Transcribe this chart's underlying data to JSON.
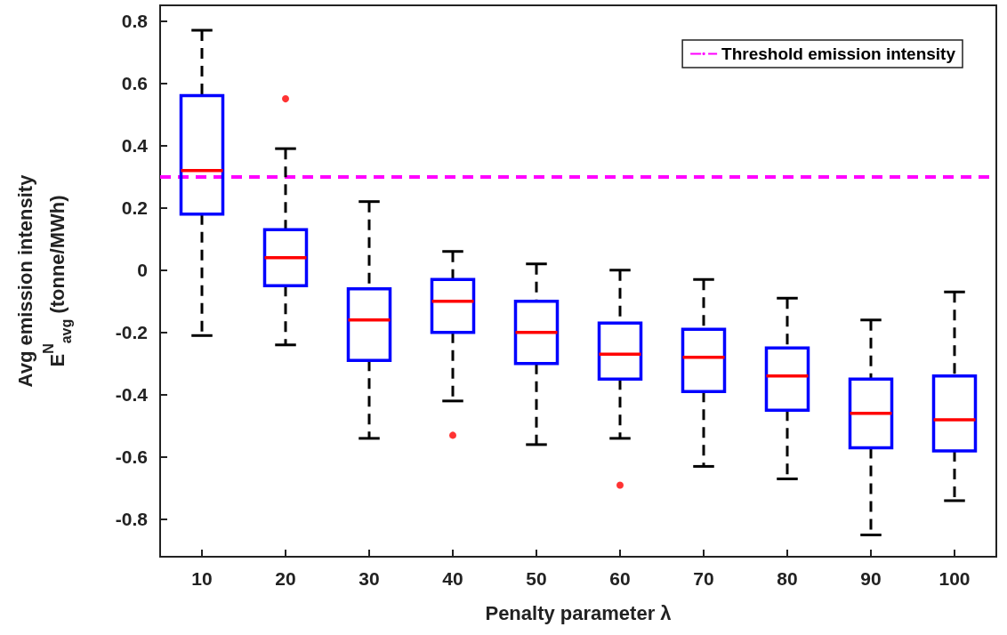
{
  "chart_data": {
    "type": "box",
    "xlabel": "Penalty parameter λ",
    "ylabel": "Avg emission intensity\nE$^{N}$$_{avg}$ (tonne/MWh)",
    "categories": [
      "10",
      "20",
      "30",
      "40",
      "50",
      "60",
      "70",
      "80",
      "90",
      "100"
    ],
    "color": "#0000ff",
    "boxes": [
      {
        "low": -0.21,
        "q1": 0.18,
        "median": 0.32,
        "q3": 0.56,
        "high": 0.77
      },
      {
        "low": -0.24,
        "q1": -0.05,
        "median": 0.04,
        "q3": 0.13,
        "high": 0.39,
        "outliers": [
          0.55
        ]
      },
      {
        "low": -0.54,
        "q1": -0.29,
        "median": -0.16,
        "q3": -0.06,
        "high": 0.22
      },
      {
        "low": -0.42,
        "q1": -0.2,
        "median": -0.1,
        "q3": -0.03,
        "high": 0.06,
        "outliers": [
          -0.53
        ]
      },
      {
        "low": -0.56,
        "q1": -0.3,
        "median": -0.2,
        "q3": -0.1,
        "high": 0.02
      },
      {
        "low": -0.54,
        "q1": -0.35,
        "median": -0.27,
        "q3": -0.17,
        "high": 0.0,
        "outliers": [
          -0.69
        ]
      },
      {
        "low": -0.63,
        "q1": -0.39,
        "median": -0.28,
        "q3": -0.19,
        "high": -0.03
      },
      {
        "low": -0.67,
        "q1": -0.45,
        "median": -0.34,
        "q3": -0.25,
        "high": -0.09
      },
      {
        "low": -0.85,
        "q1": -0.57,
        "median": -0.46,
        "q3": -0.35,
        "high": -0.16
      },
      {
        "low": -0.74,
        "q1": -0.58,
        "median": -0.48,
        "q3": -0.34,
        "high": -0.07
      }
    ],
    "ylim": [
      -0.92,
      0.85
    ],
    "yticks": [
      -0.8,
      -0.6,
      -0.4,
      -0.2,
      0,
      0.2,
      0.4,
      0.6,
      0.8
    ],
    "ref_lines": [
      {
        "axis": "y",
        "value": 0.3,
        "label": "Threshold emission intensity",
        "color": "#ff00ff",
        "line_style": "dashed"
      }
    ],
    "legend": "top right",
    "grid": false
  }
}
